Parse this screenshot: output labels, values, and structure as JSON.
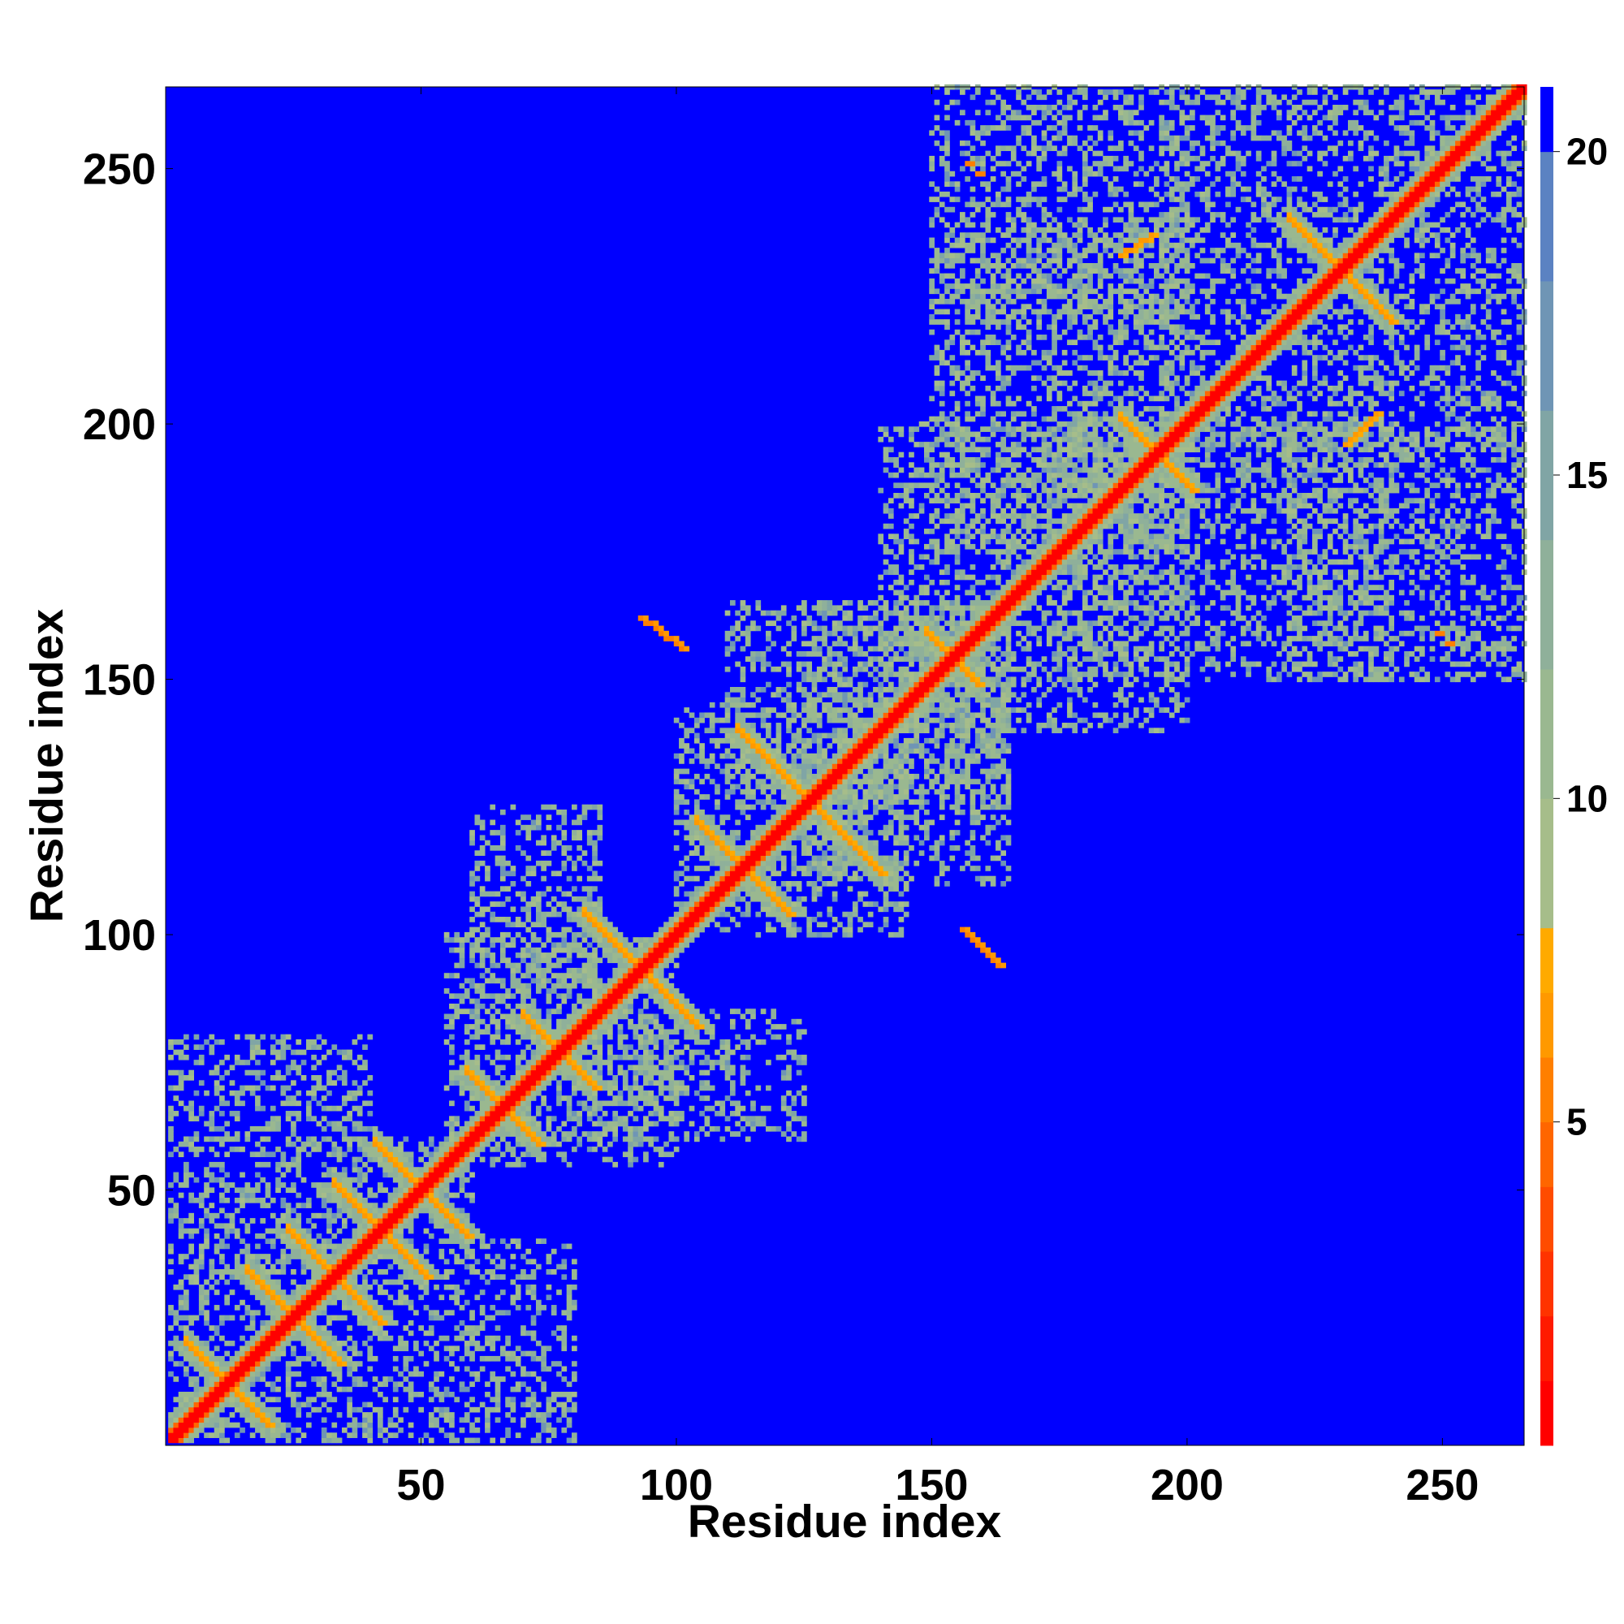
{
  "chart_data": {
    "type": "heatmap",
    "title": "",
    "xlabel": "Residue index",
    "ylabel": "Residue index",
    "xlim": [
      1,
      266
    ],
    "ylim": [
      1,
      266
    ],
    "xticks": [
      50,
      100,
      150,
      200,
      250
    ],
    "yticks": [
      50,
      100,
      150,
      200,
      250
    ],
    "xtick_labels": [
      "50",
      "100",
      "150",
      "200",
      "250"
    ],
    "ytick_labels": [
      "50",
      "100",
      "150",
      "200",
      "250"
    ],
    "colorbar": {
      "range": [
        0,
        21
      ],
      "ticks": [
        5,
        10,
        15,
        20
      ],
      "tick_labels": [
        "5",
        "10",
        "15",
        "20"
      ],
      "bands": [
        {
          "from": 0,
          "to": 1,
          "color": "#ff0000"
        },
        {
          "from": 1,
          "to": 2,
          "color": "#ff1a00"
        },
        {
          "from": 2,
          "to": 3,
          "color": "#ff3300"
        },
        {
          "from": 3,
          "to": 4,
          "color": "#ff4c00"
        },
        {
          "from": 4,
          "to": 5,
          "color": "#ff6600"
        },
        {
          "from": 5,
          "to": 6,
          "color": "#ff7f00"
        },
        {
          "from": 6,
          "to": 7,
          "color": "#ff9900"
        },
        {
          "from": 7,
          "to": 8,
          "color": "#ffaa00"
        },
        {
          "from": 8,
          "to": 10,
          "color": "#a6bd8a"
        },
        {
          "from": 10,
          "to": 12,
          "color": "#9ab890"
        },
        {
          "from": 12,
          "to": 14,
          "color": "#8fb09a"
        },
        {
          "from": 14,
          "to": 16,
          "color": "#80a5a5"
        },
        {
          "from": 16,
          "to": 18,
          "color": "#6f95b5"
        },
        {
          "from": 18,
          "to": 20,
          "color": "#5b82c2"
        },
        {
          "from": 20,
          "to": 21,
          "color": "#0000ff"
        }
      ]
    },
    "background_value": 21,
    "diagonal_band": {
      "halfwidth": 4
    },
    "features": [
      {
        "type": "helix_block",
        "x": [
          2,
          10
        ],
        "y": [
          2,
          10
        ]
      },
      {
        "type": "cross",
        "center": [
          12,
          12
        ],
        "half": 8,
        "value": 6
      },
      {
        "type": "cross",
        "center": [
          25,
          25
        ],
        "half": 9,
        "value": 6
      },
      {
        "type": "cross",
        "center": [
          33,
          33
        ],
        "half": 9,
        "value": 6
      },
      {
        "type": "cross",
        "center": [
          42,
          42
        ],
        "half": 9,
        "value": 6
      },
      {
        "type": "cross",
        "center": [
          50,
          50
        ],
        "half": 9,
        "value": 6
      },
      {
        "type": "cross",
        "center": [
          66,
          66
        ],
        "half": 7,
        "value": 6
      },
      {
        "type": "cross",
        "center": [
          77,
          77
        ],
        "half": 7,
        "value": 6
      },
      {
        "type": "cross",
        "center": [
          93,
          93
        ],
        "half": 11,
        "value": 6
      },
      {
        "type": "cross",
        "center": [
          113,
          113
        ],
        "half": 9,
        "value": 6
      },
      {
        "type": "cross",
        "center": [
          126,
          126
        ],
        "half": 14,
        "value": 6
      },
      {
        "type": "cross",
        "center": [
          154,
          154
        ],
        "half": 5,
        "value": 6
      },
      {
        "type": "cross",
        "center": [
          194,
          194
        ],
        "half": 7,
        "value": 6
      },
      {
        "type": "cross",
        "center": [
          230,
          230
        ],
        "half": 10,
        "value": 6
      },
      {
        "type": "anti_segment",
        "from": [
          93,
          162
        ],
        "to": [
          101,
          156
        ],
        "value": 5
      },
      {
        "type": "anti_segment",
        "from": [
          156,
          101
        ],
        "to": [
          163,
          94
        ],
        "value": 5
      },
      {
        "type": "anti_segment",
        "from": [
          187,
          233
        ],
        "to": [
          193,
          237
        ],
        "value": 6
      },
      {
        "type": "anti_segment",
        "from": [
          231,
          196
        ],
        "to": [
          237,
          202
        ],
        "value": 6
      },
      {
        "type": "spot",
        "x": 157,
        "y": 251,
        "value": 5
      },
      {
        "type": "spot",
        "x": 159,
        "y": 249,
        "value": 5
      },
      {
        "type": "spot",
        "x": 249,
        "y": 159,
        "value": 5
      },
      {
        "type": "spot",
        "x": 251,
        "y": 157,
        "value": 5
      },
      {
        "type": "cloud",
        "x": [
          1,
          60
        ],
        "y": [
          1,
          60
        ],
        "value": 14
      },
      {
        "type": "cloud",
        "x": [
          55,
          100
        ],
        "y": [
          55,
          100
        ],
        "value": 14
      },
      {
        "type": "cloud",
        "x": [
          100,
          145
        ],
        "y": [
          100,
          145
        ],
        "value": 14
      },
      {
        "type": "cloud",
        "x": [
          140,
          200
        ],
        "y": [
          140,
          200
        ],
        "value": 14
      },
      {
        "type": "cloud",
        "x": [
          195,
          266
        ],
        "y": [
          195,
          266
        ],
        "value": 14
      },
      {
        "type": "cloud",
        "x": [
          60,
          85
        ],
        "y": [
          80,
          125
        ],
        "value": 14
      },
      {
        "type": "cloud",
        "x": [
          80,
          125
        ],
        "y": [
          60,
          85
        ],
        "value": 14
      },
      {
        "type": "cloud",
        "x": [
          110,
          165
        ],
        "y": [
          125,
          165
        ],
        "value": 14
      },
      {
        "type": "cloud",
        "x": [
          125,
          165
        ],
        "y": [
          110,
          165
        ],
        "value": 14
      },
      {
        "type": "cloud",
        "x": [
          150,
          200
        ],
        "y": [
          175,
          240
        ],
        "value": 14
      },
      {
        "type": "cloud",
        "x": [
          175,
          240
        ],
        "y": [
          150,
          200
        ],
        "value": 14
      },
      {
        "type": "cloud",
        "x": [
          220,
          266
        ],
        "y": [
          150,
          200
        ],
        "value": 14
      },
      {
        "type": "cloud",
        "x": [
          150,
          200
        ],
        "y": [
          220,
          266
        ],
        "value": 14
      },
      {
        "type": "cloud",
        "x": [
          1,
          40
        ],
        "y": [
          60,
          80
        ],
        "value": 14
      },
      {
        "type": "cloud",
        "x": [
          60,
          80
        ],
        "y": [
          1,
          40
        ],
        "value": 14
      }
    ]
  }
}
